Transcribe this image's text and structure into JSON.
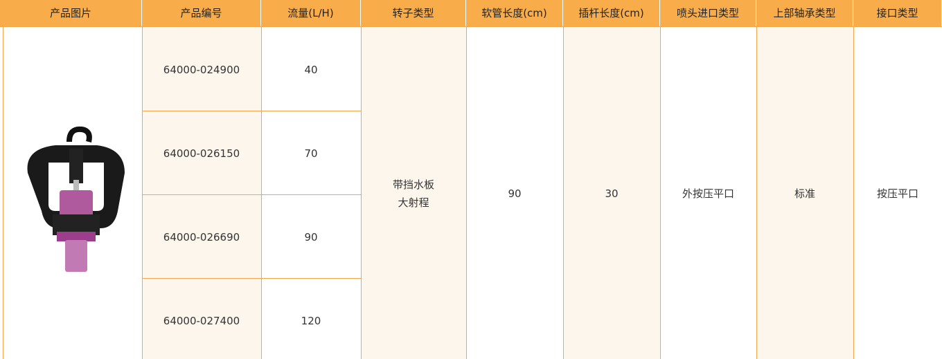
{
  "table": {
    "headers": [
      "产品图片",
      "产品编号",
      "流量(L/H)",
      "转子类型",
      "软管长度(cm)",
      "插杆长度(cm)",
      "喷头进口类型",
      "上部轴承类型",
      "接口类型"
    ],
    "rows": [
      [
        "64000-024900",
        "40"
      ],
      [
        "64000-026150",
        "70"
      ],
      [
        "64000-026690",
        "90"
      ],
      [
        "64000-027400",
        "120"
      ]
    ],
    "rotor_type": [
      "带挡水板",
      "大射程"
    ],
    "hose_length": "90",
    "stake_length": "30",
    "inlet_type": "外按压平口",
    "bearing_type": "标准",
    "connector_type": "按压平口"
  }
}
